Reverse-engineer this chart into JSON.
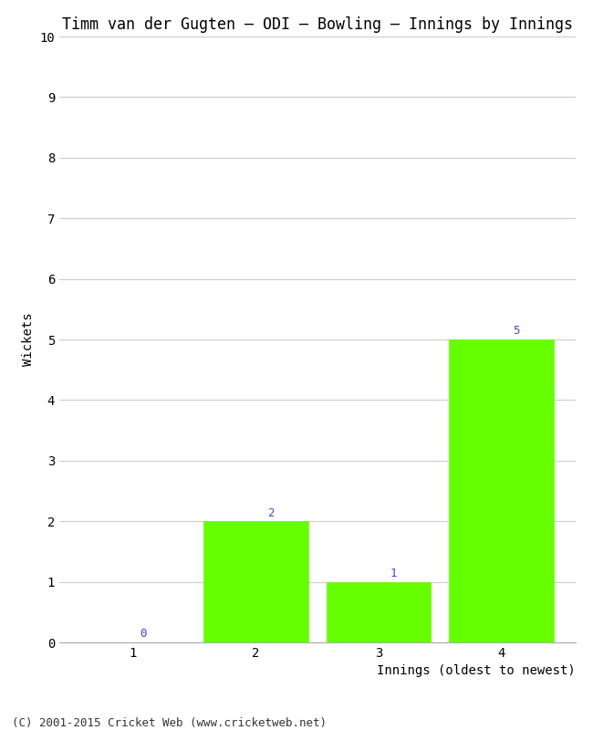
{
  "title": "Timm van der Gugten – ODI – Bowling – Innings by Innings",
  "xlabel": "Innings (oldest to newest)",
  "ylabel": "Wickets",
  "categories": [
    1,
    2,
    3,
    4
  ],
  "values": [
    0,
    2,
    1,
    5
  ],
  "bar_color": "#66ff00",
  "bar_edge_color": "#66ff00",
  "ylim": [
    0,
    10
  ],
  "yticks": [
    0,
    1,
    2,
    3,
    4,
    5,
    6,
    7,
    8,
    9,
    10
  ],
  "xticks": [
    1,
    2,
    3,
    4
  ],
  "label_color": "#4444cc",
  "label_fontsize": 9,
  "title_fontsize": 12,
  "axis_label_fontsize": 10,
  "tick_fontsize": 10,
  "background_color": "#ffffff",
  "footer_text": "(C) 2001-2015 Cricket Web (www.cricketweb.net)",
  "footer_fontsize": 9,
  "grid_color": "#cccccc",
  "font_family": "monospace"
}
